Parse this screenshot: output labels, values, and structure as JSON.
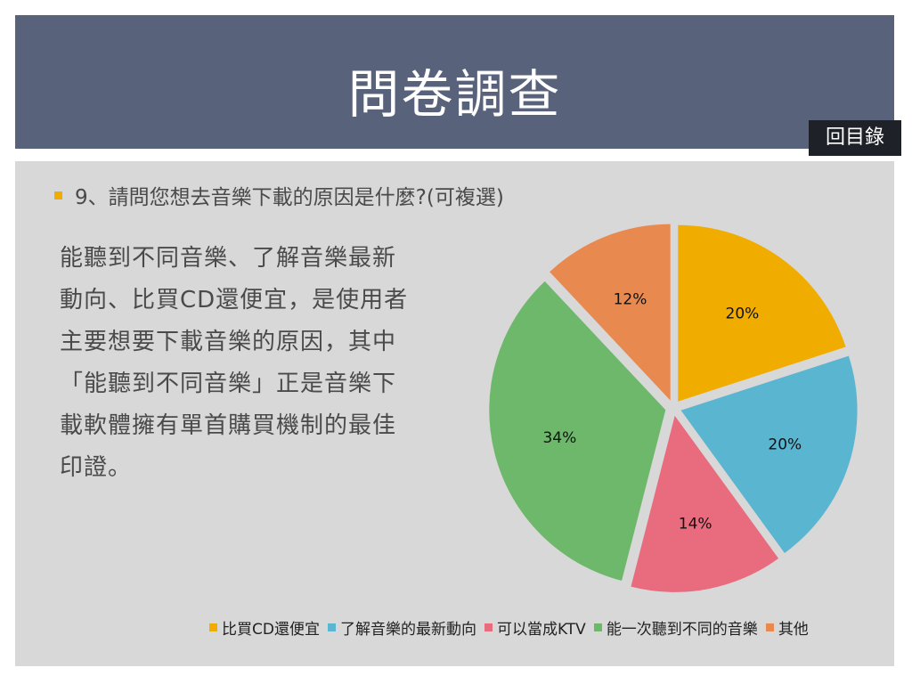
{
  "header": {
    "title": "問卷調查",
    "toc_label": "回目錄"
  },
  "question": "9、請問您想去音樂下載的原因是什麼?(可複選)",
  "description": "能聽到不同音樂、了解音樂最新動向、比買CD還便宜，是使用者主要想要下載音樂的原因，其中「能聽到不同音樂」正是音樂下載軟體擁有單首購買機制的最佳印證。",
  "colors": {
    "header_bg": "#58627a",
    "content_bg": "#d8d8d8",
    "bullet": "#f0ad00"
  },
  "chart_data": {
    "type": "pie",
    "slices": [
      {
        "name": "比買CD還便宜",
        "value": 20,
        "label": "20%",
        "color": "#f0ad00"
      },
      {
        "name": "了解音樂的最新動向",
        "value": 20,
        "label": "20%",
        "color": "#5ab5d0"
      },
      {
        "name": "可以當成KTV",
        "value": 14,
        "label": "14%",
        "color": "#e86b7e"
      },
      {
        "name": "能一次聽到不同的音樂",
        "value": 34,
        "label": "34%",
        "color": "#6db86a"
      },
      {
        "name": "其他",
        "value": 12,
        "label": "12%",
        "color": "#e8894f"
      }
    ],
    "legend_position": "bottom"
  }
}
